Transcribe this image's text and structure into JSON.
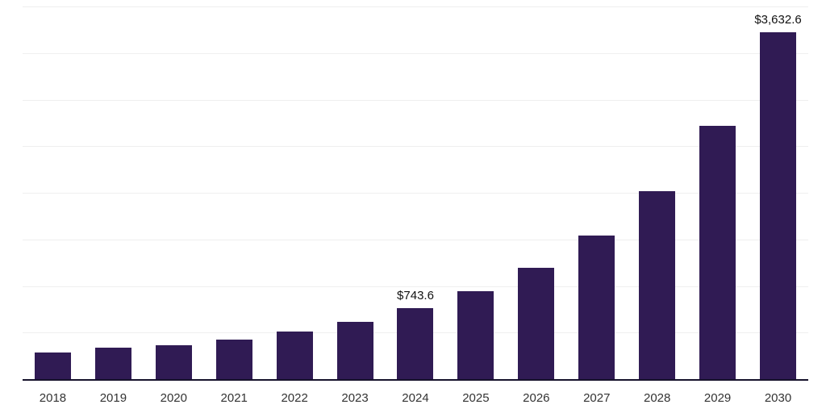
{
  "chart_data": {
    "type": "bar",
    "title": "",
    "xlabel": "",
    "ylabel": "",
    "categories": [
      "2018",
      "2019",
      "2020",
      "2021",
      "2022",
      "2023",
      "2024",
      "2025",
      "2026",
      "2027",
      "2028",
      "2029",
      "2030"
    ],
    "values": [
      278,
      329,
      354,
      413,
      497,
      598,
      743.6,
      919,
      1163,
      1500,
      1964,
      2647,
      3632.6
    ],
    "data_labels": [
      "",
      "",
      "",
      "",
      "",
      "",
      "$743.6",
      "",
      "",
      "",
      "",
      "",
      "$3,632.6"
    ],
    "ylim": [
      0,
      3900
    ],
    "grid": "horizontal",
    "gridline_count": 8,
    "legend": "none",
    "bar_color": "#301b54",
    "axis_line_color": "#16122b",
    "label_color": "#111111",
    "tick_label_color": "#333333"
  }
}
